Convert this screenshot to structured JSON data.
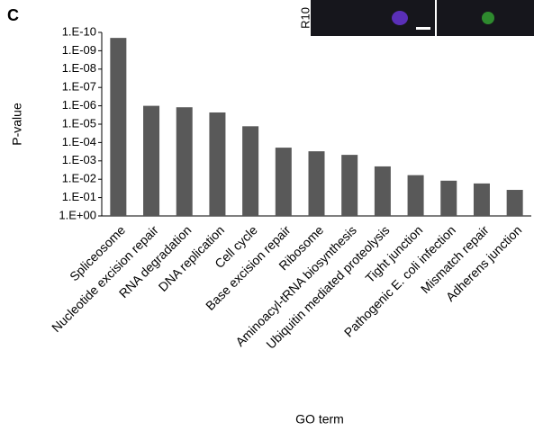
{
  "panel_label": "C",
  "image_label": "R10",
  "chart_data": {
    "type": "bar",
    "log": true,
    "y_label": "P-value",
    "x_label": "GO term",
    "categories": [
      "Spliceosome",
      "Nucleotide excision repair",
      "RNA degradation",
      "DNA replication",
      "Cell cycle",
      "Base excision repair",
      "Ribosome",
      "Aminoacyl-tRNA biosynthesis",
      "Ubiquitin mediated proteolysis",
      "Tight junction",
      "Pathogenic E. coli infection",
      "Mismatch repair",
      "Adherens junction"
    ],
    "values": [
      2e-10,
      1e-06,
      1.2e-06,
      2.3e-06,
      1.3e-05,
      0.00019,
      0.0003,
      0.00047,
      0.002,
      0.006,
      0.012,
      0.017,
      0.038
    ],
    "color": "#595959",
    "ylim": [
      1,
      1e-10
    ],
    "yticks": [
      {
        "value": 1,
        "label": "1.E+00"
      },
      {
        "value": 0.1,
        "label": "1.E-01"
      },
      {
        "value": 0.01,
        "label": "1.E-02"
      },
      {
        "value": 0.001,
        "label": "1.E-03"
      },
      {
        "value": 0.0001,
        "label": "1.E-04"
      },
      {
        "value": 1e-05,
        "label": "1.E-05"
      },
      {
        "value": 1e-06,
        "label": "1.E-06"
      },
      {
        "value": 1e-07,
        "label": "1.E-07"
      },
      {
        "value": 1e-08,
        "label": "1.E-08"
      },
      {
        "value": 1e-09,
        "label": "1.E-09"
      },
      {
        "value": 1e-10,
        "label": "1.E-10"
      }
    ],
    "grid": false
  }
}
